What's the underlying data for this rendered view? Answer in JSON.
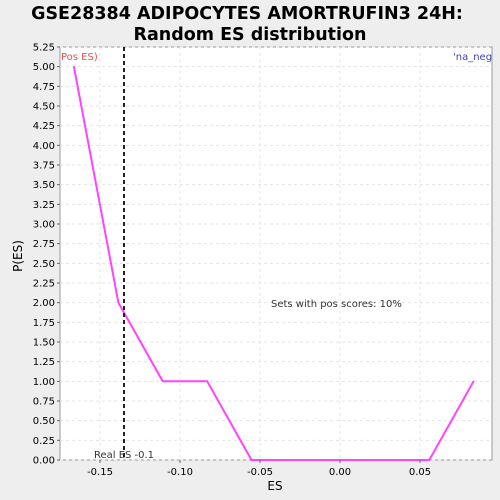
{
  "chart_data": {
    "type": "line",
    "title": "GSE28384 ADIPOCYTES AMORTRUFIN3 24H:",
    "subtitle": "Random ES distribution",
    "xlabel": "ES",
    "ylabel": "P(ES)",
    "xlim": [
      -0.175,
      0.095
    ],
    "ylim": [
      0,
      5.25
    ],
    "xticks": [
      -0.15,
      -0.1,
      -0.05,
      0.0,
      0.05
    ],
    "xtick_labels": [
      "-0.15",
      "-0.10",
      "-0.05",
      "0.00",
      "0.05"
    ],
    "yticks": [
      0,
      0.25,
      0.5,
      0.75,
      1.0,
      1.25,
      1.5,
      1.75,
      2.0,
      2.25,
      2.5,
      2.75,
      3.0,
      3.25,
      3.5,
      3.75,
      4.0,
      4.25,
      4.5,
      4.75,
      5.0,
      5.25
    ],
    "ytick_labels": [
      "0.00",
      "0.25",
      "0.50",
      "0.75",
      "1.00",
      "1.25",
      "1.50",
      "1.75",
      "2.00",
      "2.25",
      "2.50",
      "2.75",
      "3.00",
      "3.25",
      "3.50",
      "3.75",
      "4.00",
      "4.25",
      "4.50",
      "4.75",
      "5.00",
      "5.25"
    ],
    "grid": true,
    "series": [
      {
        "color": "#ff44ff",
        "x": [
          -0.1663,
          -0.1385,
          -0.1108,
          -0.083,
          -0.0553,
          -0.0275,
          0.0003,
          0.028,
          0.0558,
          0.0835
        ],
        "y": [
          5.0,
          2.0,
          1.0,
          1.0,
          0.0,
          0.0,
          0.0,
          0.0,
          0.0,
          1.0
        ]
      }
    ],
    "real_es": -0.135,
    "real_es_label": "Real ES -0.1",
    "annotations": {
      "pos_label": "Pos ES)",
      "neg_label": "'na_neg",
      "sets_text": "Sets with pos scores: 10%"
    },
    "colors": {
      "pos_label": "#e05050",
      "neg_label": "#4040c0",
      "line": "#ff44ff",
      "real_es_line": "#222222"
    }
  }
}
